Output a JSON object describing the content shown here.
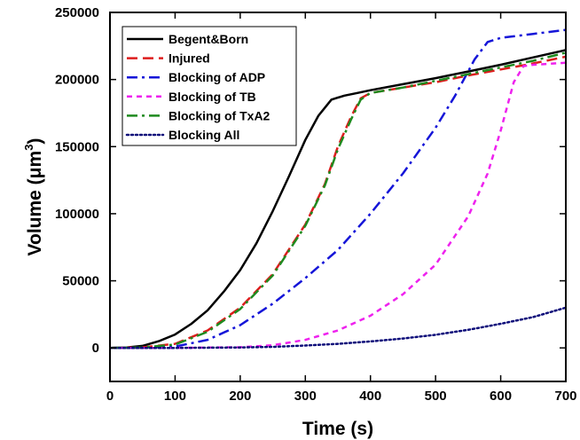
{
  "chart_data": {
    "type": "line",
    "xlabel": "Time (s)",
    "ylabel_main": "Volume (",
    "ylabel_unit": "μm",
    "ylabel_sup": "3",
    "ylabel_close": ")",
    "xlim": [
      0,
      700
    ],
    "ylim": [
      -25000,
      250000
    ],
    "xticks": [
      0,
      100,
      200,
      300,
      400,
      500,
      600,
      700
    ],
    "yticks": [
      0,
      50000,
      100000,
      150000,
      200000,
      250000
    ],
    "grid": false,
    "legend_position": "top-left",
    "series": [
      {
        "name": "Begent&Born",
        "color": "#000000",
        "dash": "solid",
        "x": [
          0,
          25,
          50,
          75,
          100,
          125,
          150,
          175,
          200,
          225,
          250,
          275,
          300,
          320,
          340,
          360,
          380,
          400,
          450,
          500,
          550,
          600,
          650,
          700
        ],
        "y": [
          0,
          300,
          1500,
          5000,
          10000,
          18000,
          28000,
          42000,
          58000,
          78000,
          102000,
          128000,
          155000,
          173000,
          185000,
          188000,
          190000,
          192000,
          196500,
          201000,
          206000,
          211000,
          216500,
          222000
        ]
      },
      {
        "name": "Injured",
        "color": "#dd1c1c",
        "dash": "dashed",
        "x": [
          0,
          50,
          100,
          150,
          200,
          250,
          300,
          330,
          350,
          370,
          385,
          400,
          450,
          500,
          550,
          600,
          650,
          700
        ],
        "y": [
          0,
          400,
          3000,
          13000,
          30000,
          55000,
          92000,
          122000,
          150000,
          172000,
          186000,
          190000,
          194000,
          198000,
          203000,
          207500,
          212000,
          217000
        ]
      },
      {
        "name": "Blocking of ADP",
        "color": "#1515d8",
        "dash": "dashdot",
        "x": [
          0,
          50,
          100,
          150,
          200,
          250,
          300,
          350,
          400,
          450,
          500,
          530,
          560,
          580,
          600,
          650,
          700
        ],
        "y": [
          0,
          200,
          1000,
          6000,
          17000,
          33000,
          52000,
          73000,
          100000,
          130000,
          164000,
          188000,
          215000,
          228000,
          231000,
          234000,
          237000
        ]
      },
      {
        "name": "Blocking of TB",
        "color": "#ee22ee",
        "dash": "shortdash",
        "x": [
          0,
          100,
          200,
          250,
          300,
          350,
          400,
          450,
          500,
          550,
          580,
          600,
          620,
          635,
          650,
          700
        ],
        "y": [
          0,
          0,
          500,
          2000,
          6000,
          13000,
          24000,
          40000,
          62000,
          98000,
          130000,
          162000,
          198000,
          210000,
          211000,
          212500
        ]
      },
      {
        "name": "Blocking of TxA2",
        "color": "#1f8a1f",
        "dash": "dashdot",
        "x": [
          0,
          50,
          100,
          150,
          200,
          250,
          300,
          330,
          350,
          370,
          385,
          400,
          450,
          500,
          550,
          600,
          650,
          700
        ],
        "y": [
          0,
          300,
          2500,
          12000,
          29000,
          54000,
          91000,
          121000,
          148000,
          170000,
          185000,
          190000,
          194000,
          199000,
          204000,
          209000,
          214000,
          220000
        ]
      },
      {
        "name": "Blocking All",
        "color": "#0d0d7a",
        "dash": "dotted",
        "x": [
          0,
          100,
          200,
          250,
          300,
          350,
          400,
          450,
          500,
          550,
          600,
          650,
          700
        ],
        "y": [
          0,
          0,
          300,
          800,
          1800,
          3000,
          4800,
          7000,
          9800,
          13500,
          18000,
          23000,
          30000
        ]
      }
    ]
  }
}
